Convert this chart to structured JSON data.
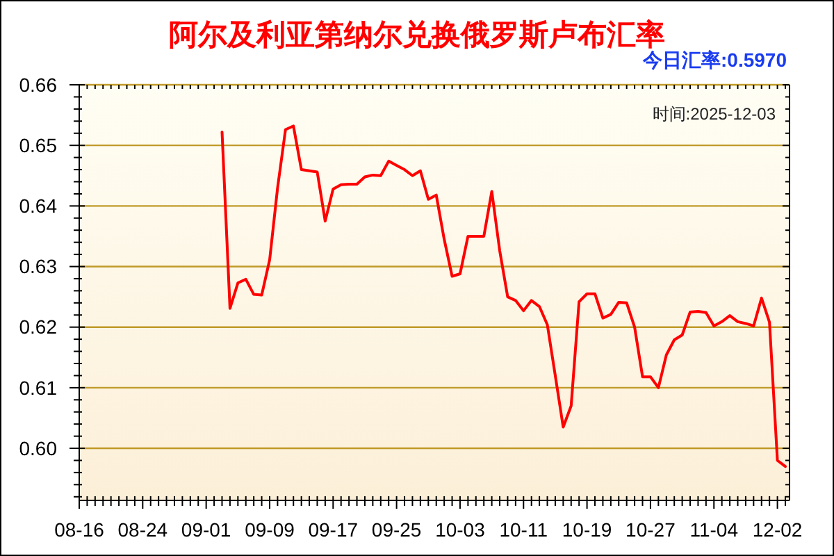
{
  "chart_data": {
    "type": "line",
    "title": "阿尔及利亚第纳尔兑换俄罗斯卢布汇率",
    "subtitle": "今日汇率:0.5970",
    "annotations": [
      "时间:2025-12-03"
    ],
    "categories": [
      "08-16",
      null,
      null,
      null,
      null,
      null,
      null,
      null,
      "08-24",
      null,
      null,
      null,
      null,
      null,
      null,
      null,
      "09-01",
      null,
      null,
      null,
      null,
      null,
      null,
      null,
      "09-09",
      null,
      null,
      null,
      null,
      null,
      null,
      null,
      "09-17",
      null,
      null,
      null,
      null,
      null,
      null,
      null,
      "09-25",
      null,
      null,
      null,
      null,
      null,
      null,
      null,
      "10-03",
      null,
      null,
      null,
      null,
      null,
      null,
      null,
      "10-11",
      null,
      null,
      null,
      null,
      null,
      null,
      null,
      "10-19",
      null,
      null,
      null,
      null,
      null,
      null,
      null,
      "10-27",
      null,
      null,
      null,
      null,
      null,
      null,
      null,
      "11-04",
      null,
      null,
      null,
      null,
      null,
      null,
      null,
      "12-02",
      null
    ],
    "values": [
      null,
      null,
      null,
      null,
      null,
      null,
      null,
      null,
      null,
      null,
      null,
      null,
      null,
      null,
      null,
      null,
      null,
      null,
      0.6522,
      0.6231,
      0.6273,
      0.6279,
      0.6254,
      0.6253,
      0.6311,
      0.643,
      0.6526,
      0.6532,
      0.646,
      0.6458,
      0.6456,
      0.6375,
      0.6428,
      0.6435,
      0.6436,
      0.6436,
      0.6448,
      0.6451,
      0.645,
      0.6474,
      0.6467,
      0.646,
      0.645,
      0.6458,
      0.6411,
      0.6418,
      0.6345,
      0.6284,
      0.6288,
      0.635,
      0.635,
      0.635,
      0.6424,
      0.6326,
      0.625,
      0.6244,
      0.6227,
      0.6244,
      0.6234,
      0.6204,
      0.612,
      0.6035,
      0.607,
      0.6242,
      0.6255,
      0.6255,
      0.6215,
      0.6221,
      0.6241,
      0.624,
      0.62,
      0.6118,
      0.6118,
      0.61,
      0.6154,
      0.6179,
      0.6187,
      0.6225,
      0.6226,
      0.6224,
      0.6202,
      0.6209,
      0.6219,
      0.6209,
      0.6206,
      0.6202,
      0.6248,
      0.6208,
      0.598,
      0.597
    ],
    "color": "#ff0000",
    "line_style": "solid",
    "ylim": [
      0.5914,
      0.66
    ],
    "yticks": [
      {
        "value": 0.592,
        "label": null
      },
      {
        "value": 0.594,
        "label": null
      },
      {
        "value": 0.596,
        "label": null
      },
      {
        "value": 0.598,
        "label": null
      },
      {
        "value": 0.6,
        "label": "0.60"
      },
      {
        "value": 0.602,
        "label": null
      },
      {
        "value": 0.604,
        "label": null
      },
      {
        "value": 0.606,
        "label": null
      },
      {
        "value": 0.608,
        "label": null
      },
      0.61,
      {
        "value": 0.612,
        "label": null
      },
      {
        "value": 0.614,
        "label": null
      },
      {
        "value": 0.616,
        "label": null
      },
      {
        "value": 0.618,
        "label": null
      },
      0.62,
      {
        "value": 0.622,
        "label": null
      },
      {
        "value": 0.624,
        "label": null
      },
      {
        "value": 0.626,
        "label": null
      },
      {
        "value": 0.628,
        "label": null
      },
      0.63,
      {
        "value": 0.632,
        "label": null
      },
      {
        "value": 0.634,
        "label": null
      },
      {
        "value": 0.636,
        "label": null
      },
      {
        "value": 0.638,
        "label": null
      },
      0.64,
      {
        "value": 0.642,
        "label": null
      },
      {
        "value": 0.644,
        "label": null
      },
      {
        "value": 0.646,
        "label": null
      },
      {
        "value": 0.648,
        "label": null
      },
      0.65,
      {
        "value": 0.652,
        "label": null
      },
      {
        "value": 0.654,
        "label": null
      },
      {
        "value": 0.656,
        "label": null
      },
      {
        "value": 0.658,
        "label": null
      },
      0.66
    ],
    "grid": "y"
  }
}
